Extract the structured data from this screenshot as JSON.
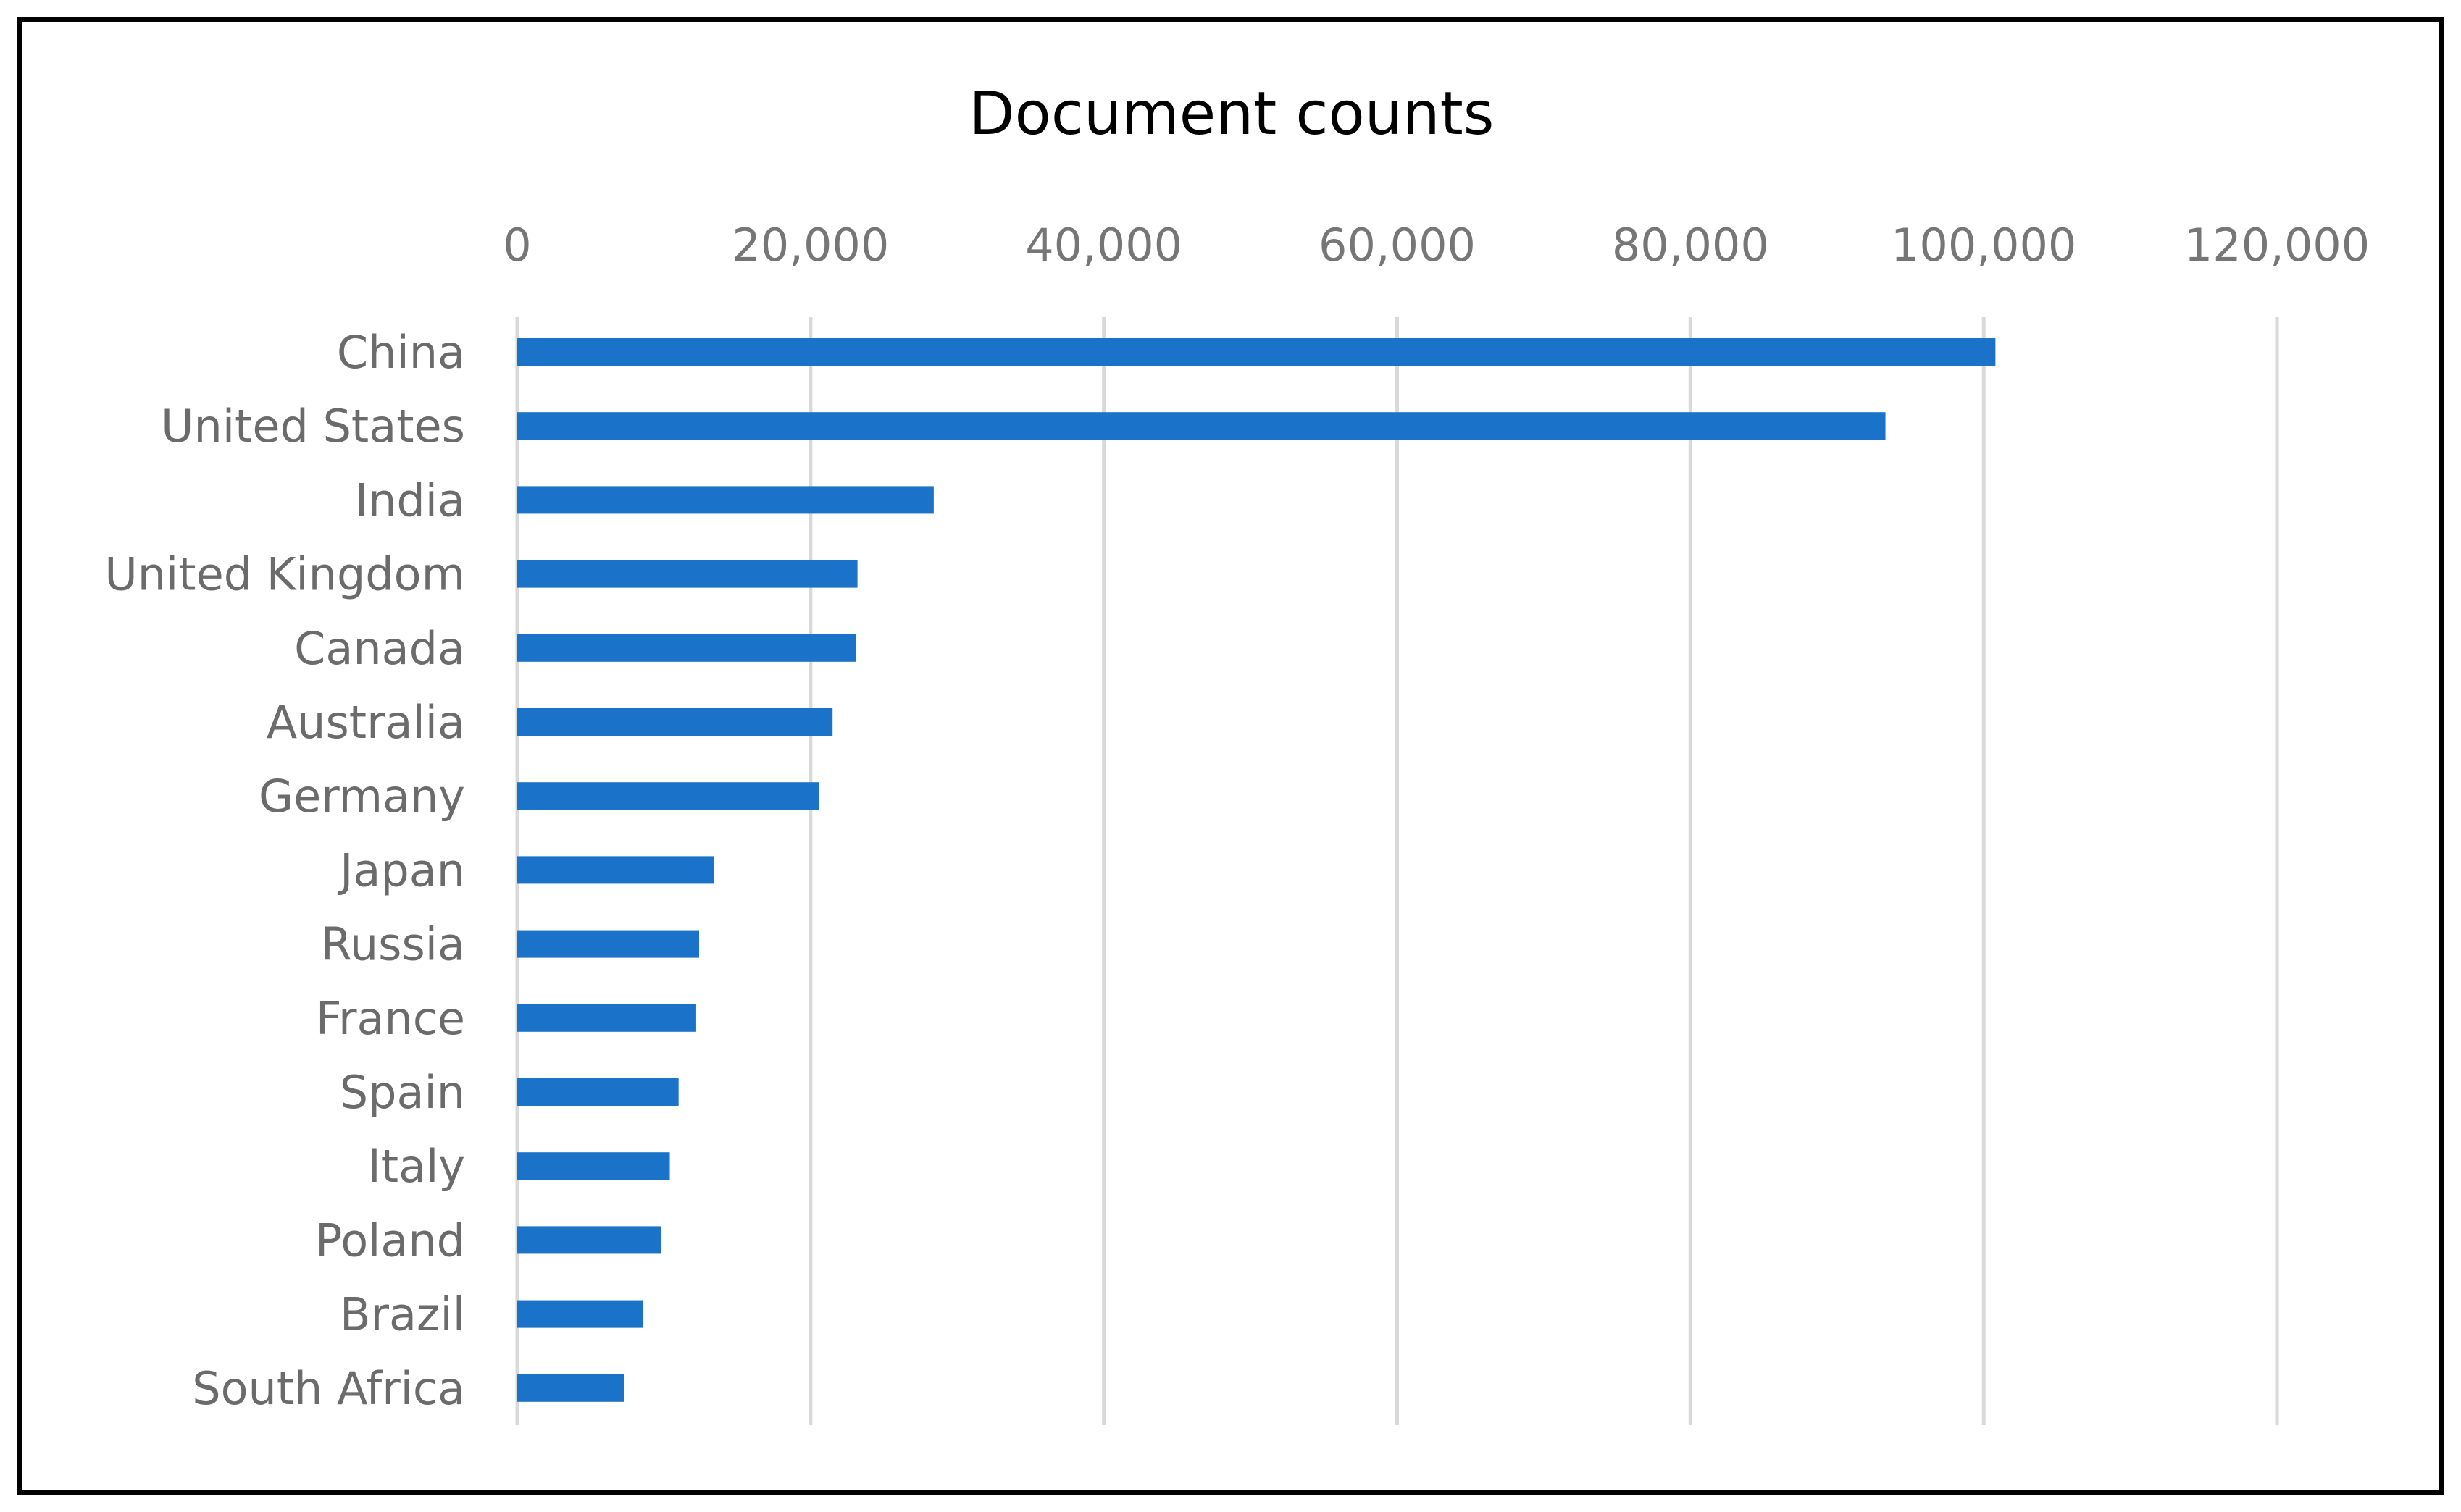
{
  "chart_data": {
    "type": "bar",
    "orientation": "horizontal",
    "title": "Document counts",
    "xlabel": "",
    "ylabel": "",
    "xlim": [
      0,
      120000
    ],
    "ticks": [
      0,
      20000,
      40000,
      60000,
      80000,
      100000,
      120000
    ],
    "tick_labels": [
      "0",
      "20,000",
      "40,000",
      "60,000",
      "80,000",
      "100,000",
      "120,000"
    ],
    "grid": true,
    "legend": "none",
    "bar_color": "#1a73c8",
    "categories": [
      "China",
      "United States",
      "India",
      "United Kingdom",
      "Canada",
      "Australia",
      "Germany",
      "Japan",
      "Russia",
      "France",
      "Spain",
      "Italy",
      "Poland",
      "Brazil",
      "South Africa"
    ],
    "values": [
      100800,
      93300,
      28400,
      23200,
      23100,
      21500,
      20600,
      13400,
      12400,
      12200,
      11000,
      10400,
      9800,
      8600,
      7300
    ]
  }
}
